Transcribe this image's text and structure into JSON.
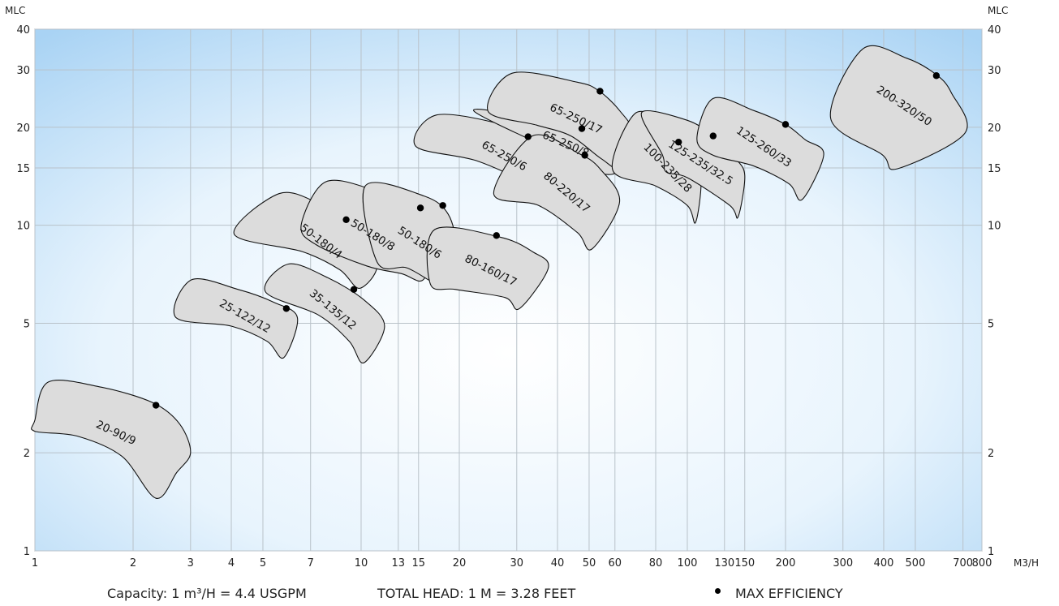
{
  "footer": {
    "capacity": "Capacity: 1 m³/H = 4.4 USGPM",
    "head": "TOTAL HEAD: 1 M = 3.28 FEET",
    "legend": "MAX EFFICIENCY"
  },
  "chart_data": {
    "type": "area",
    "x_unit_label": "M3/H",
    "y_unit_label_left": "MLC",
    "y_unit_label_right": "MLC",
    "x_scale": "log",
    "y_scale": "log",
    "xlim": [
      1,
      800
    ],
    "ylim": [
      1,
      40
    ],
    "x_ticks": [
      1,
      2,
      3,
      4,
      5,
      7,
      10,
      13,
      15,
      20,
      30,
      40,
      50,
      60,
      80,
      100,
      130,
      150,
      200,
      300,
      400,
      500,
      700,
      800
    ],
    "y_ticks": [
      1,
      2,
      5,
      10,
      15,
      20,
      30,
      40
    ],
    "grid": true,
    "regions": [
      {
        "name": "20-90/9",
        "max_efficiency": [
          2.35,
          2.8
        ],
        "polygon": [
          [
            1.1,
            3.3
          ],
          [
            1.6,
            3.18
          ],
          [
            2.3,
            2.85
          ],
          [
            2.78,
            2.45
          ],
          [
            3.0,
            2.0
          ],
          [
            2.72,
            1.74
          ],
          [
            2.35,
            1.45
          ],
          [
            1.85,
            1.95
          ],
          [
            1.35,
            2.25
          ],
          [
            1.0,
            2.33
          ],
          [
            1.0,
            2.52
          ]
        ]
      },
      {
        "name": "25-122/12",
        "max_efficiency": [
          5.9,
          5.55
        ],
        "polygon": [
          [
            3.02,
            6.8
          ],
          [
            4.2,
            6.35
          ],
          [
            5.4,
            5.8
          ],
          [
            6.38,
            5.2
          ],
          [
            5.79,
            3.92
          ],
          [
            5.15,
            4.4
          ],
          [
            4.0,
            4.9
          ],
          [
            2.7,
            5.22
          ]
        ]
      },
      {
        "name": "35-135/12",
        "max_efficiency": [
          9.5,
          6.35
        ],
        "polygon": [
          [
            5.98,
            7.6
          ],
          [
            7.9,
            6.9
          ],
          [
            10.2,
            5.9
          ],
          [
            11.8,
            4.9
          ],
          [
            10.2,
            3.78
          ],
          [
            9.2,
            4.4
          ],
          [
            7.4,
            5.3
          ],
          [
            5.09,
            6.25
          ]
        ]
      },
      {
        "name": "50-180/4",
        "max_efficiency": [
          9.0,
          10.4
        ],
        "polygon": [
          [
            5.6,
            12.5
          ],
          [
            7.5,
            11.6
          ],
          [
            9.6,
            9.9
          ],
          [
            11.2,
            7.6
          ],
          [
            9.9,
            6.4
          ],
          [
            8.6,
            7.3
          ],
          [
            6.6,
            8.3
          ],
          [
            4.08,
            9.4
          ]
        ]
      },
      {
        "name": "50-180/8",
        "max_efficiency": [
          15.2,
          11.3
        ],
        "polygon": [
          [
            7.8,
            13.6
          ],
          [
            11.2,
            12.7
          ],
          [
            14.2,
            11.2
          ],
          [
            16.4,
            8.7
          ],
          [
            15.5,
            6.8
          ],
          [
            13.3,
            7.1
          ],
          [
            10.4,
            7.5
          ],
          [
            7.3,
            8.7
          ],
          [
            6.55,
            10.0
          ]
        ]
      },
      {
        "name": "50-180/6",
        "max_efficiency": [
          17.8,
          11.5
        ],
        "polygon": [
          [
            10.3,
            13.2
          ],
          [
            15.6,
            12.3
          ],
          [
            18.5,
            10.8
          ],
          [
            19.5,
            8.5
          ],
          [
            18.3,
            6.45
          ],
          [
            16.5,
            6.7
          ],
          [
            13.8,
            7.4
          ],
          [
            11.2,
            7.7
          ]
        ]
      },
      {
        "name": "80-160/17",
        "max_efficiency": [
          26.0,
          9.3
        ],
        "polygon": [
          [
            16.8,
            9.7
          ],
          [
            26.6,
            9.2
          ],
          [
            33.5,
            8.3
          ],
          [
            37.5,
            7.4
          ],
          [
            30.6,
            5.55
          ],
          [
            27.6,
            6.0
          ],
          [
            19.5,
            6.35
          ],
          [
            16.3,
            6.6
          ]
        ]
      },
      {
        "name": "65-250/6",
        "max_efficiency": [
          32.5,
          18.7
        ],
        "polygon": [
          [
            17.0,
            21.8
          ],
          [
            27.5,
            20.3
          ],
          [
            36.0,
            17.8
          ],
          [
            43.5,
            15.0
          ],
          [
            40.2,
            11.5
          ],
          [
            33.0,
            13.3
          ],
          [
            22.5,
            15.8
          ],
          [
            14.7,
            17.5
          ]
        ]
      },
      {
        "name": "65-250/8",
        "max_efficiency": [
          47.5,
          19.8
        ],
        "polygon": [
          [
            22.2,
            22.4
          ],
          [
            33.5,
            21.3
          ],
          [
            44.5,
            19.9
          ],
          [
            55.0,
            17.1
          ],
          [
            60.0,
            14.5
          ],
          [
            51.0,
            14.6
          ],
          [
            44.0,
            16.0
          ]
        ]
      },
      {
        "name": "80-220/17",
        "max_efficiency": [
          48.5,
          16.4
        ],
        "polygon": [
          [
            33.5,
            18.8
          ],
          [
            46.5,
            16.6
          ],
          [
            54.0,
            14.9
          ],
          [
            62.0,
            11.8
          ],
          [
            51.0,
            8.45
          ],
          [
            46.0,
            9.5
          ],
          [
            35.0,
            11.5
          ],
          [
            25.5,
            12.5
          ]
        ]
      },
      {
        "name": "65-250/17",
        "max_efficiency": [
          54.0,
          25.8
        ],
        "polygon": [
          [
            29.0,
            29.3
          ],
          [
            46.0,
            27.5
          ],
          [
            53.5,
            25.9
          ],
          [
            62.0,
            22.5
          ],
          [
            68.5,
            19.0
          ],
          [
            62.5,
            15.0
          ],
          [
            54.5,
            16.0
          ],
          [
            44.0,
            18.8
          ],
          [
            34.5,
            20.3
          ],
          [
            24.5,
            22.4
          ]
        ]
      },
      {
        "name": "100-235/28",
        "max_efficiency": [
          94.0,
          18.0
        ],
        "polygon": [
          [
            69.0,
            22.0
          ],
          [
            86.0,
            20.5
          ],
          [
            100.0,
            17.5
          ],
          [
            110.0,
            14.0
          ],
          [
            106.0,
            10.2
          ],
          [
            100.0,
            11.5
          ],
          [
            80.0,
            13.2
          ],
          [
            59.0,
            14.8
          ]
        ]
      },
      {
        "name": "125-235/32.5",
        "max_efficiency": [
          120.0,
          18.8
        ],
        "polygon": [
          [
            72.5,
            22.2
          ],
          [
            100.0,
            21.0
          ],
          [
            120.0,
            18.8
          ],
          [
            140.0,
            16.1
          ],
          [
            150.0,
            14.2
          ],
          [
            143.0,
            10.6
          ],
          [
            135.0,
            11.5
          ],
          [
            100.0,
            14.0
          ],
          [
            86.0,
            14.6
          ],
          [
            84.0,
            16.4
          ]
        ]
      },
      {
        "name": "125-260/33",
        "max_efficiency": [
          200.0,
          20.4
        ],
        "polygon": [
          [
            120.0,
            24.5
          ],
          [
            160.0,
            22.5
          ],
          [
            200.0,
            20.4
          ],
          [
            230.0,
            18.3
          ],
          [
            262.0,
            16.5
          ],
          [
            225.0,
            12.0
          ],
          [
            205.0,
            13.4
          ],
          [
            160.0,
            15.2
          ],
          [
            120.0,
            16.4
          ],
          [
            107.0,
            18.4
          ]
        ]
      },
      {
        "name": "200-320/50",
        "max_efficiency": [
          580.0,
          28.8
        ],
        "polygon": [
          [
            345.0,
            34.8
          ],
          [
            470.0,
            32.6
          ],
          [
            580.0,
            29.0
          ],
          [
            645.0,
            25.5
          ],
          [
            710.0,
            19.2
          ],
          [
            440.0,
            14.9
          ],
          [
            395.0,
            16.5
          ],
          [
            275.0,
            21.3
          ]
        ]
      }
    ]
  }
}
